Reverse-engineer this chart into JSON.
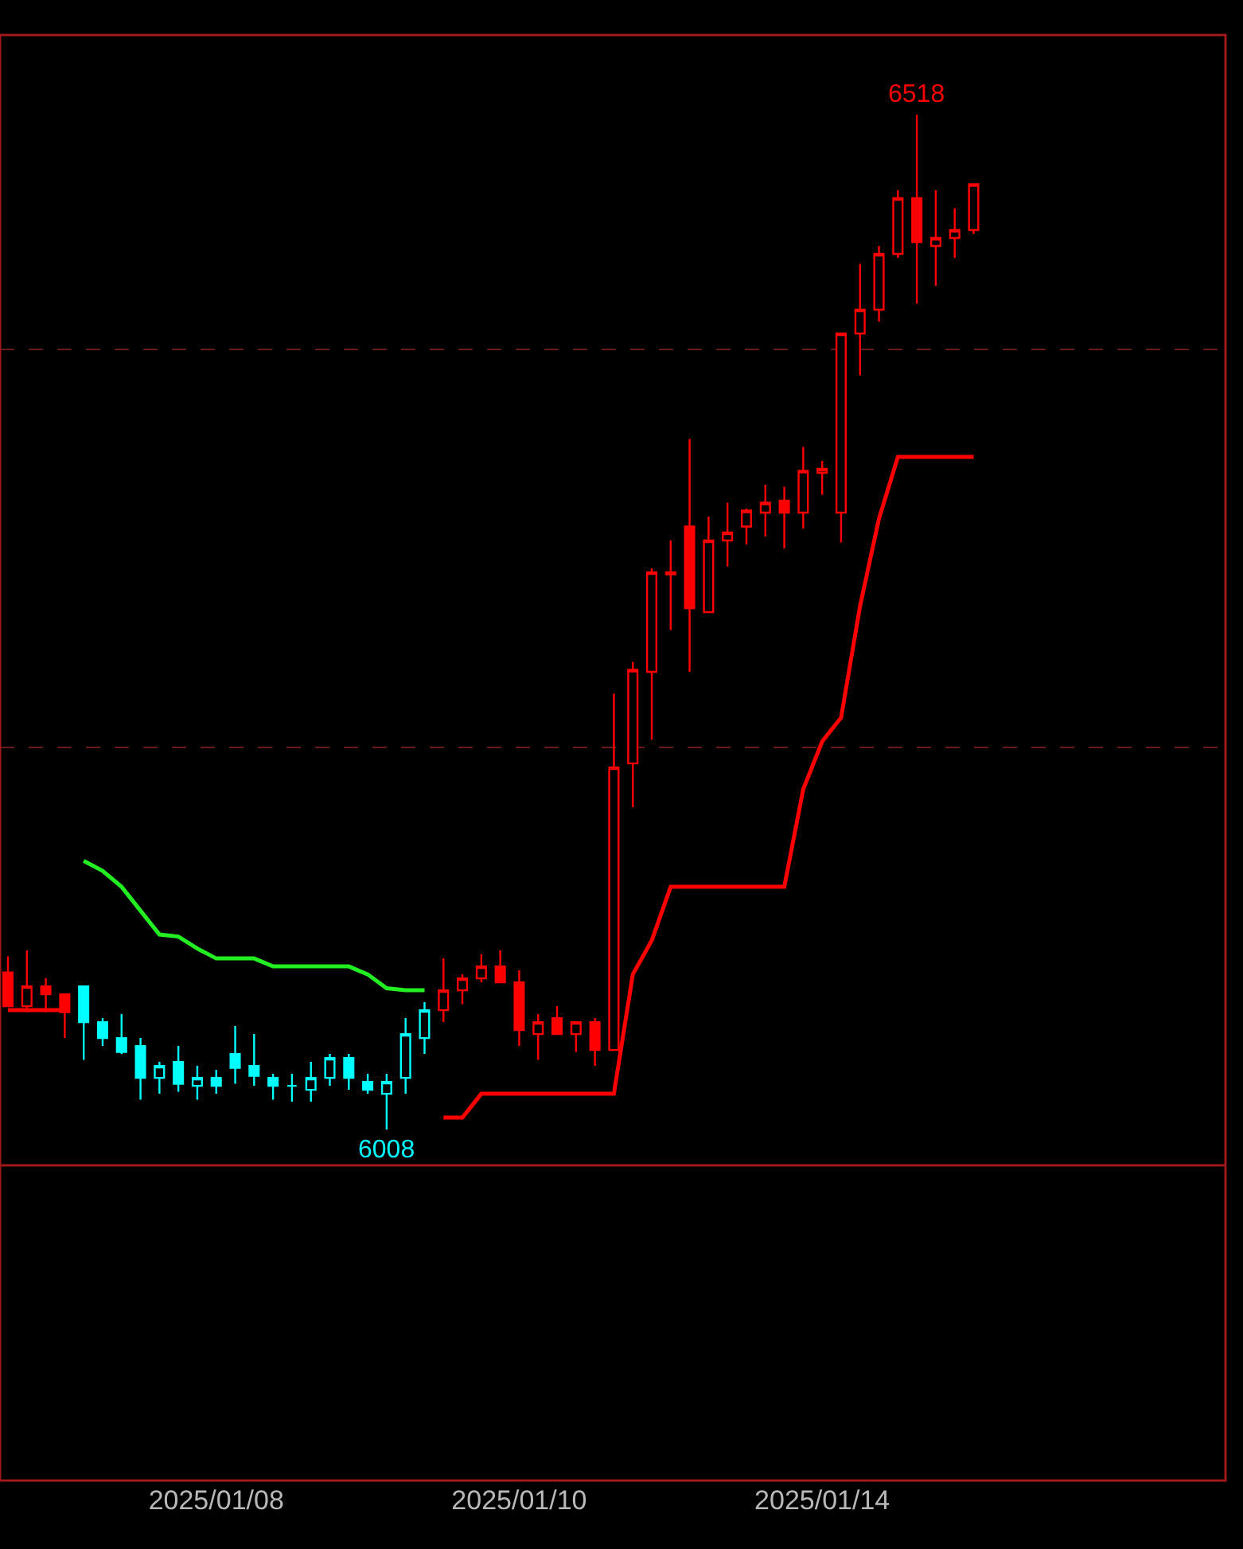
{
  "chart_data": {
    "type": "candlestick",
    "categories": [
      null,
      null,
      null,
      null,
      null,
      null,
      null,
      null,
      null,
      null,
      null,
      "2025/01/08",
      null,
      null,
      null,
      null,
      null,
      null,
      null,
      null,
      null,
      null,
      null,
      null,
      null,
      null,
      null,
      "2025/01/10",
      null,
      null,
      null,
      null,
      null,
      null,
      null,
      null,
      null,
      null,
      null,
      null,
      null,
      null,
      null,
      "2025/01/14",
      null,
      null,
      null,
      null,
      null,
      null,
      null,
      null
    ],
    "ohlc": [
      [
        6087,
        6095,
        6070,
        6070
      ],
      [
        6070,
        6098,
        6067,
        6080
      ],
      [
        6080,
        6084,
        6067,
        6076
      ],
      [
        6076,
        6076,
        6054,
        6067
      ],
      [
        6080,
        6080,
        6043,
        6062
      ],
      [
        6062,
        6064,
        6050,
        6054
      ],
      [
        6054,
        6066,
        6046,
        6047
      ],
      [
        6050,
        6054,
        6023,
        6034
      ],
      [
        6034,
        6042,
        6026,
        6040
      ],
      [
        6042,
        6050,
        6027,
        6031
      ],
      [
        6030,
        6040,
        6023,
        6034
      ],
      [
        6034,
        6038,
        6026,
        6030
      ],
      [
        6046,
        6060,
        6031,
        6039
      ],
      [
        6040,
        6056,
        6030,
        6035
      ],
      [
        6034,
        6036,
        6023,
        6030
      ],
      [
        6030,
        6036,
        6022,
        6030
      ],
      [
        6028,
        6042,
        6022,
        6034
      ],
      [
        6034,
        6046,
        6030,
        6044
      ],
      [
        6044,
        6046,
        6028,
        6034
      ],
      [
        6032,
        6036,
        6026,
        6028
      ],
      [
        6026,
        6036,
        6008,
        6032
      ],
      [
        6034,
        6064,
        6026,
        6056
      ],
      [
        6054,
        6072,
        6046,
        6068
      ],
      [
        6068,
        6094,
        6062,
        6078
      ],
      [
        6078,
        6086,
        6071,
        6084
      ],
      [
        6084,
        6096,
        6082,
        6090
      ],
      [
        6090,
        6098,
        6082,
        6082
      ],
      [
        6082,
        6088,
        6050,
        6058
      ],
      [
        6056,
        6066,
        6043,
        6062
      ],
      [
        6064,
        6070,
        6056,
        6056
      ],
      [
        6056,
        6062,
        6047,
        6062
      ],
      [
        6062,
        6064,
        6040,
        6048
      ],
      [
        6048,
        6227,
        6048,
        6190
      ],
      [
        6192,
        6243,
        6170,
        6239
      ],
      [
        6238,
        6290,
        6204,
        6288
      ],
      [
        6288,
        6304,
        6259,
        6287
      ],
      [
        6311,
        6355,
        6238,
        6270
      ],
      [
        6268,
        6316,
        6268,
        6304
      ],
      [
        6304,
        6323,
        6291,
        6308
      ],
      [
        6311,
        6320,
        6302,
        6319
      ],
      [
        6318,
        6332,
        6306,
        6323
      ],
      [
        6324,
        6331,
        6300,
        6318
      ],
      [
        6318,
        6351,
        6310,
        6339
      ],
      [
        6338,
        6344,
        6327,
        6340
      ],
      [
        6318,
        6408,
        6303,
        6408
      ],
      [
        6408,
        6443,
        6387,
        6420
      ],
      [
        6420,
        6452,
        6414,
        6448
      ],
      [
        6448,
        6480,
        6446,
        6476
      ],
      [
        6476,
        6518,
        6423,
        6454
      ],
      [
        6452,
        6480,
        6432,
        6456
      ],
      [
        6456,
        6471,
        6446,
        6460
      ],
      [
        6460,
        6483,
        6458,
        6483
      ]
    ],
    "colors": [
      "#ff0000",
      "#ff0000",
      "#ff0000",
      "#ff0000",
      "#00ffff",
      "#00ffff",
      "#00ffff",
      "#00ffff",
      "#00ffff",
      "#00ffff",
      "#00ffff",
      "#00ffff",
      "#00ffff",
      "#00ffff",
      "#00ffff",
      "#00ffff",
      "#00ffff",
      "#00ffff",
      "#00ffff",
      "#00ffff",
      "#00ffff",
      "#00ffff",
      "#00ffff",
      "#ff0000",
      "#ff0000",
      "#ff0000",
      "#ff0000",
      "#ff0000",
      "#ff0000",
      "#ff0000",
      "#ff0000",
      "#ff0000",
      "#ff0000",
      "#ff0000",
      "#ff0000",
      "#ff0000",
      "#ff0000",
      "#ff0000",
      "#ff0000",
      "#ff0000",
      "#ff0000",
      "#ff0000",
      "#ff0000",
      "#ff0000",
      "#ff0000",
      "#ff0000",
      "#ff0000",
      "#ff0000",
      "#ff0000",
      "#ff0000",
      "#ff0000",
      "#ff0000"
    ],
    "series": [
      {
        "type": "line",
        "color": "#22ee22",
        "values": [
          null,
          null,
          null,
          null,
          6143,
          6138,
          6130,
          6118,
          6106,
          6105,
          6099,
          6094,
          6094,
          6094,
          6090,
          6090,
          6090,
          6090,
          6090,
          6086,
          6079,
          6078,
          6078,
          null,
          null,
          null,
          null,
          null,
          null,
          null,
          null,
          null,
          null,
          null,
          null,
          null,
          null,
          null,
          null,
          null,
          null,
          null,
          null,
          null,
          null,
          null,
          null,
          null,
          null,
          null,
          null,
          null
        ]
      },
      {
        "type": "line",
        "color": "#ff0000",
        "values": [
          6068,
          6068,
          6068,
          6068,
          null,
          null,
          null,
          null,
          null,
          null,
          null,
          null,
          null,
          null,
          null,
          null,
          null,
          null,
          null,
          null,
          null,
          null,
          null,
          6014,
          6014,
          6026,
          6026,
          6026,
          6026,
          6026,
          6026,
          6026,
          6026,
          6086,
          6103,
          6130,
          6130,
          6130,
          6130,
          6130,
          6130,
          6130,
          6179,
          6203,
          6215,
          6271,
          6315,
          6346,
          6346,
          6346,
          6346,
          6346
        ]
      }
    ],
    "ylim": [
      5990,
      6558
    ],
    "yticks": [
      {
        "value": 6200,
        "label": null
      },
      {
        "value": 6400,
        "label": null
      }
    ],
    "grid": "y",
    "tick_labels": "x",
    "annotations": [
      {
        "text": "6518",
        "y": 6518
      },
      {
        "text": "6008",
        "y": 6008
      }
    ]
  }
}
